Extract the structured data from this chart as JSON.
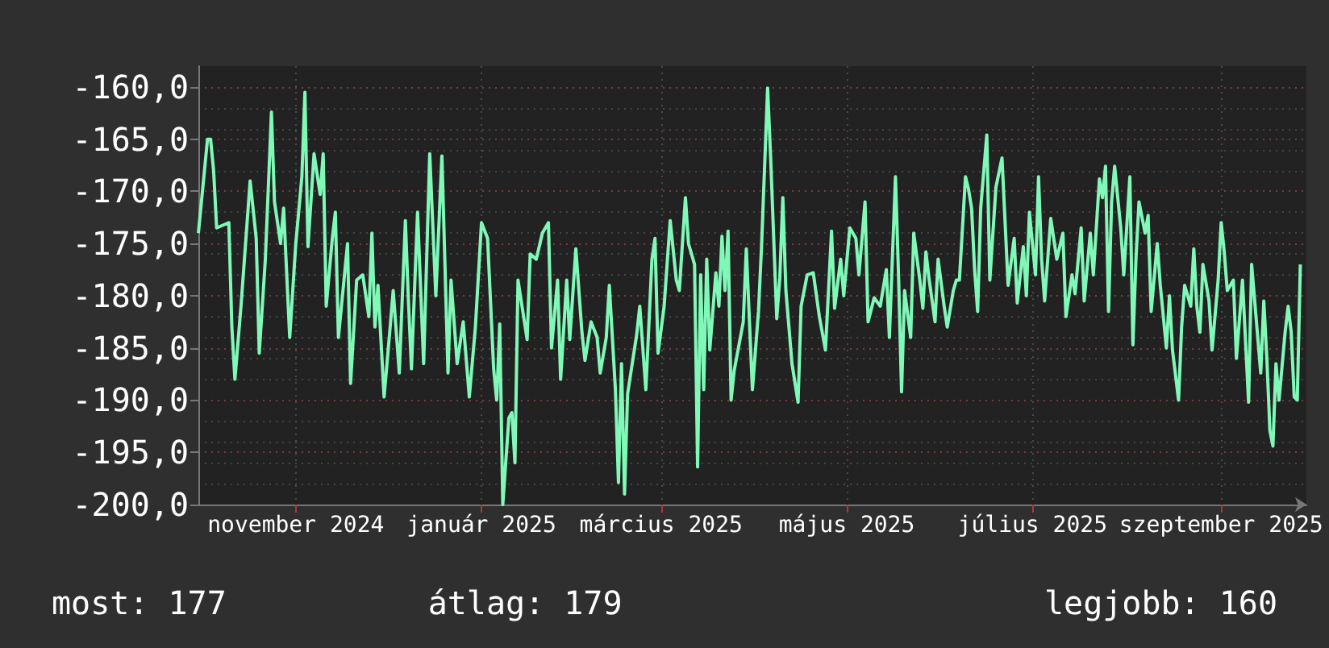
{
  "chart_data": {
    "type": "line",
    "x": [
      "2024-10-14",
      "2024-10-17",
      "2024-10-18",
      "2024-10-19",
      "2024-10-20",
      "2024-10-24",
      "2024-10-25",
      "2024-10-26",
      "2024-10-28",
      "2024-10-30",
      "2024-10-31",
      "2024-11-02",
      "2024-11-03",
      "2024-11-05",
      "2024-11-07",
      "2024-11-08",
      "2024-11-10",
      "2024-11-11",
      "2024-11-13",
      "2024-11-15",
      "2024-11-17",
      "2024-11-18",
      "2024-11-19",
      "2024-11-21",
      "2024-11-23",
      "2024-11-24",
      "2024-11-25",
      "2024-11-27",
      "2024-11-28",
      "2024-11-29",
      "2024-12-02",
      "2024-12-03",
      "2024-12-05",
      "2024-12-07",
      "2024-12-09",
      "2024-12-10",
      "2024-12-11",
      "2024-12-12",
      "2024-12-14",
      "2024-12-16",
      "2024-12-17",
      "2024-12-19",
      "2024-12-21",
      "2024-12-22",
      "2024-12-23",
      "2024-12-25",
      "2024-12-27",
      "2024-12-29",
      "2024-12-31",
      "2025-01-02",
      "2025-01-04",
      "2025-01-05",
      "2025-01-07",
      "2025-01-09",
      "2025-01-11",
      "2025-01-13",
      "2025-01-15",
      "2025-01-17",
      "2025-01-19",
      "2025-01-20",
      "2025-01-21",
      "2025-01-22",
      "2025-01-24",
      "2025-01-25",
      "2025-01-26",
      "2025-01-27",
      "2025-01-30",
      "2025-01-31",
      "2025-02-02",
      "2025-02-04",
      "2025-02-06",
      "2025-02-07",
      "2025-02-09",
      "2025-02-10",
      "2025-02-12",
      "2025-02-13",
      "2025-02-15",
      "2025-02-17",
      "2025-02-18",
      "2025-02-20",
      "2025-02-22",
      "2025-02-23",
      "2025-02-25",
      "2025-02-26",
      "2025-02-28",
      "2025-03-01",
      "2025-03-02",
      "2025-03-03",
      "2025-03-04",
      "2025-03-07",
      "2025-03-08",
      "2025-03-10",
      "2025-03-12",
      "2025-03-13",
      "2025-03-14",
      "2025-03-16",
      "2025-03-18",
      "2025-03-20",
      "2025-03-21",
      "2025-03-23",
      "2025-03-24",
      "2025-03-26",
      "2025-03-27",
      "2025-03-28",
      "2025-03-29",
      "2025-03-30",
      "2025-03-31",
      "2025-04-02",
      "2025-04-03",
      "2025-04-04",
      "2025-04-05",
      "2025-04-06",
      "2025-04-07",
      "2025-04-08",
      "2025-04-11",
      "2025-04-12",
      "2025-04-14",
      "2025-04-16",
      "2025-04-17",
      "2025-04-19",
      "2025-04-20",
      "2025-04-22",
      "2025-04-23",
      "2025-04-24",
      "2025-04-25",
      "2025-04-27",
      "2025-04-29",
      "2025-04-30",
      "2025-05-02",
      "2025-05-04",
      "2025-05-06",
      "2025-05-08",
      "2025-05-10",
      "2025-05-11",
      "2025-05-13",
      "2025-05-14",
      "2025-05-16",
      "2025-05-18",
      "2025-05-19",
      "2025-05-21",
      "2025-05-22",
      "2025-05-24",
      "2025-05-26",
      "2025-05-28",
      "2025-05-29",
      "2025-05-31",
      "2025-06-01",
      "2025-06-02",
      "2025-06-03",
      "2025-06-05",
      "2025-06-06",
      "2025-06-08",
      "2025-06-09",
      "2025-06-10",
      "2025-06-11",
      "2025-06-13",
      "2025-06-14",
      "2025-06-16",
      "2025-06-17",
      "2025-06-19",
      "2025-06-20",
      "2025-06-21",
      "2025-06-23",
      "2025-06-24",
      "2025-06-25",
      "2025-06-26",
      "2025-06-27",
      "2025-06-28",
      "2025-06-30",
      "2025-07-01",
      "2025-07-03",
      "2025-07-05",
      "2025-07-07",
      "2025-07-09",
      "2025-07-10",
      "2025-07-12",
      "2025-07-13",
      "2025-07-14",
      "2025-07-16",
      "2025-07-17",
      "2025-07-18",
      "2025-07-19",
      "2025-07-21",
      "2025-07-23",
      "2025-07-25",
      "2025-07-26",
      "2025-07-28",
      "2025-07-29",
      "2025-07-31",
      "2025-08-01",
      "2025-08-03",
      "2025-08-04",
      "2025-08-06",
      "2025-08-07",
      "2025-08-08",
      "2025-08-09",
      "2025-08-10",
      "2025-08-11",
      "2025-08-13",
      "2025-08-14",
      "2025-08-16",
      "2025-08-17",
      "2025-08-18",
      "2025-08-19",
      "2025-08-21",
      "2025-08-22",
      "2025-08-23",
      "2025-08-25",
      "2025-08-26",
      "2025-08-28",
      "2025-08-29",
      "2025-08-30",
      "2025-09-01",
      "2025-09-02",
      "2025-09-03",
      "2025-09-05",
      "2025-09-06",
      "2025-09-07",
      "2025-09-08",
      "2025-09-09",
      "2025-09-11",
      "2025-09-12",
      "2025-09-14",
      "2025-09-15",
      "2025-09-16",
      "2025-09-17",
      "2025-09-19",
      "2025-09-20",
      "2025-09-22",
      "2025-09-24",
      "2025-09-25",
      "2025-09-28",
      "2025-09-29",
      "2025-09-30",
      "2025-10-01",
      "2025-10-02",
      "2025-10-03",
      "2025-10-04",
      "2025-10-06",
      "2025-10-07",
      "2025-10-08",
      "2025-10-09",
      "2025-10-10",
      "2025-10-11"
    ],
    "series": [
      {
        "color": "#80f8b8",
        "values": [
          -174,
          -165,
          -165,
          -168,
          -173.5,
          -173,
          -183,
          -188,
          -181,
          -173,
          -169,
          -174.5,
          -185.5,
          -176.5,
          -162.4,
          -171,
          -175,
          -171.6,
          -184,
          -175,
          -168.6,
          -160.5,
          -175.3,
          -166.4,
          -170.3,
          -166.4,
          -181,
          -174.5,
          -172,
          -184,
          -175,
          -188.4,
          -178.5,
          -178,
          -182,
          -174,
          -183,
          -179,
          -189.7,
          -183,
          -179.5,
          -187.4,
          -172.8,
          -180.5,
          -187,
          -172,
          -186.5,
          -166.4,
          -180,
          -166.6,
          -187.4,
          -178.5,
          -186.5,
          -182.5,
          -189.7,
          -183,
          -173,
          -174.5,
          -187,
          -190,
          -182.7,
          -200,
          -191.7,
          -191.2,
          -196,
          -178.5,
          -184.2,
          -176,
          -176.5,
          -174,
          -173,
          -185,
          -178.5,
          -188,
          -178.5,
          -184.2,
          -175.5,
          -183.5,
          -186.2,
          -182.5,
          -184,
          -187.4,
          -184,
          -179,
          -189,
          -197.9,
          -186.5,
          -199,
          -189.4,
          -183.7,
          -181,
          -189,
          -176.5,
          -174.5,
          -185.5,
          -181,
          -172.8,
          -178.5,
          -179.5,
          -170.6,
          -175,
          -177,
          -196.4,
          -178,
          -189,
          -176.5,
          -185.2,
          -177.8,
          -181,
          -174.3,
          -179.5,
          -173.8,
          -190,
          -187.2,
          -182.5,
          -175.5,
          -189,
          -181.5,
          -175.3,
          -160.1,
          -166.8,
          -182.2,
          -178.3,
          -170.6,
          -179.5,
          -186.5,
          -190.2,
          -181,
          -178,
          -177.8,
          -182,
          -185.2,
          -173.8,
          -181.2,
          -176.5,
          -180,
          -173.5,
          -174.5,
          -178,
          -171,
          -182.5,
          -180.2,
          -181,
          -177.5,
          -184,
          -168.6,
          -178,
          -189.2,
          -179.5,
          -184,
          -174,
          -178.5,
          -181.2,
          -175.8,
          -178.3,
          -182.5,
          -176.5,
          -181,
          -183,
          -179.5,
          -178.5,
          -178.5,
          -168.6,
          -169.8,
          -171.6,
          -177.5,
          -181.5,
          -171.6,
          -164.6,
          -178.5,
          -169.6,
          -166.8,
          -179,
          -174.5,
          -180.7,
          -175.3,
          -180,
          -172,
          -178,
          -168.6,
          -176.5,
          -180.5,
          -172.6,
          -176.5,
          -174,
          -182,
          -178,
          -179.8,
          -173.5,
          -180.5,
          -174,
          -178,
          -168.8,
          -170.6,
          -167.6,
          -181.5,
          -171,
          -167.6,
          -173.5,
          -178,
          -168.6,
          -184.7,
          -176.5,
          -171,
          -174,
          -172.3,
          -181.5,
          -175,
          -179,
          -185,
          -180,
          -185.2,
          -190,
          -183,
          -179,
          -181,
          -175.5,
          -181,
          -183.5,
          -177,
          -180.5,
          -185.2,
          -178.5,
          -173,
          -175.8,
          -179.5,
          -178.5,
          -186,
          -178.5,
          -190.2,
          -177,
          -187.4,
          -180.5,
          -186,
          -192.9,
          -194.4,
          -186.5,
          -190,
          -183.5,
          -181,
          -183.5,
          -189.7,
          -190,
          -177
        ]
      }
    ],
    "xlim": [
      "2024-10-14",
      "2025-10-13"
    ],
    "xticks": [
      {
        "value": "2024-11-15",
        "label": "november 2024"
      },
      {
        "value": "2025-01-15",
        "label": "január 2025"
      },
      {
        "value": "2025-03-15",
        "label": "március 2025"
      },
      {
        "value": "2025-05-15",
        "label": "május 2025"
      },
      {
        "value": "2025-07-15",
        "label": "július 2025"
      },
      {
        "value": "2025-09-15",
        "label": "szeptember 2025"
      }
    ],
    "ylim": [
      -200,
      -158
    ],
    "yticks": [
      {
        "value": -200,
        "label": "-200,0"
      },
      {
        "value": -195,
        "label": "-195,0"
      },
      {
        "value": -190,
        "label": "-190,0"
      },
      {
        "value": -185,
        "label": "-185,0"
      },
      {
        "value": -180,
        "label": "-180,0"
      },
      {
        "value": -175,
        "label": "-175,0"
      },
      {
        "value": -170,
        "label": "-170,0"
      },
      {
        "value": -165,
        "label": "-165,0"
      },
      {
        "value": -160,
        "label": "-160,0"
      }
    ],
    "grid": true,
    "annotations": [
      "most: 177",
      "átlag: 179",
      "legjobb: 160"
    ]
  }
}
